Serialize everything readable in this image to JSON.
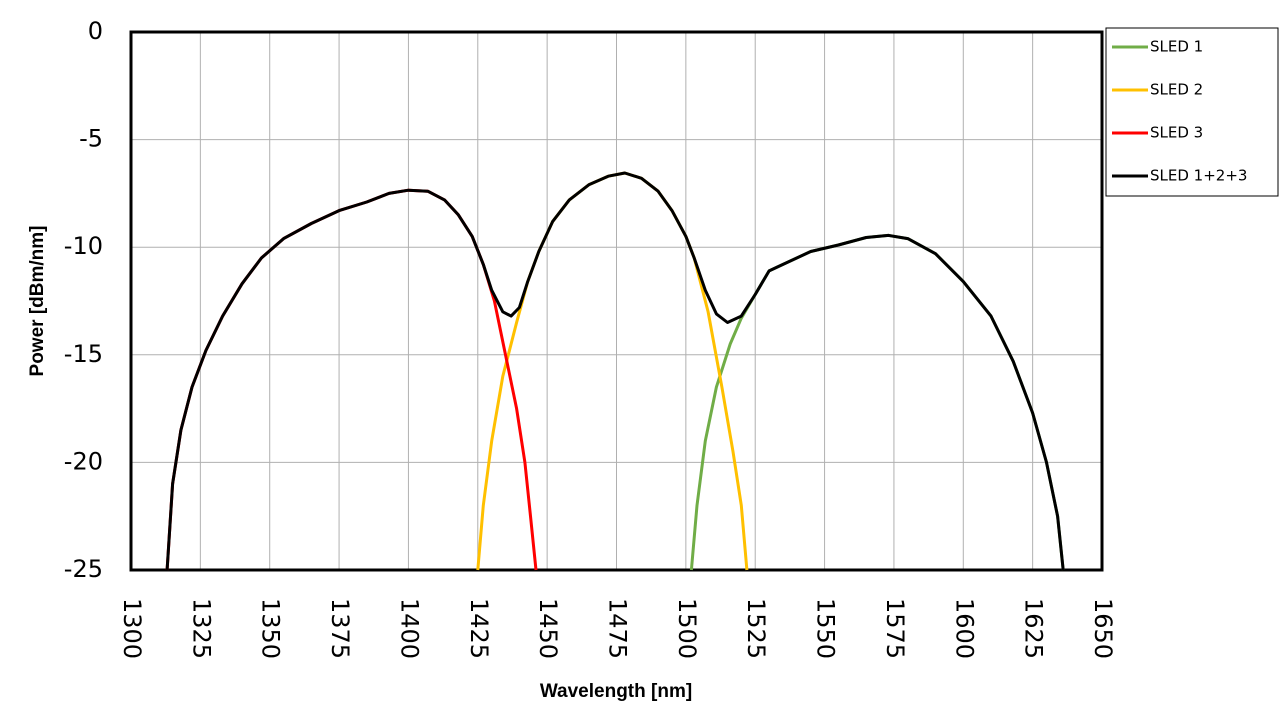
{
  "chart_data": {
    "type": "line",
    "x_label": "Wavelength [nm]",
    "y_label": "Power [dBm/nm]",
    "xlim": [
      1300,
      1650
    ],
    "xticks": [
      1300,
      1325,
      1350,
      1375,
      1400,
      1425,
      1450,
      1475,
      1500,
      1525,
      1550,
      1575,
      1600,
      1625,
      1650
    ],
    "ylim": [
      -25,
      0
    ],
    "yticks": [
      0,
      -5,
      -10,
      -15,
      -20,
      -25
    ],
    "grid": true,
    "legend": "right",
    "series": [
      {
        "name": "SLED 1",
        "color": "#70ad47",
        "x": [
          1502,
          1504,
          1507,
          1511,
          1516,
          1520,
          1525,
          1530,
          1535,
          1545,
          1555,
          1565,
          1573,
          1580,
          1590,
          1600,
          1610,
          1618,
          1625,
          1630,
          1634,
          1636
        ],
        "values": [
          -25,
          -22,
          -19,
          -16.5,
          -14.5,
          -13.3,
          -12.2,
          -11.1,
          -10.8,
          -10.2,
          -9.9,
          -9.55,
          -9.45,
          -9.6,
          -10.3,
          -11.6,
          -13.2,
          -15.3,
          -17.7,
          -20,
          -22.5,
          -25
        ]
      },
      {
        "name": "SLED 2",
        "color": "#ffc000",
        "x": [
          1425,
          1427,
          1430,
          1434,
          1439,
          1443,
          1447,
          1452,
          1458,
          1465,
          1472,
          1478,
          1484,
          1490,
          1495,
          1500,
          1503,
          1508,
          1513,
          1517,
          1520,
          1522
        ],
        "values": [
          -25,
          -22,
          -19,
          -16,
          -13.5,
          -11.6,
          -10.2,
          -8.8,
          -7.8,
          -7.1,
          -6.7,
          -6.55,
          -6.8,
          -7.4,
          -8.3,
          -9.5,
          -10.5,
          -13,
          -16.5,
          -19.5,
          -22,
          -25
        ]
      },
      {
        "name": "SLED 3",
        "color": "#ff0000",
        "x": [
          1313,
          1315,
          1318,
          1322,
          1327,
          1333,
          1340,
          1347,
          1355,
          1365,
          1375,
          1385,
          1393,
          1400,
          1407,
          1413,
          1418,
          1423,
          1427,
          1431,
          1435,
          1439,
          1442,
          1444,
          1446
        ],
        "values": [
          -25,
          -21,
          -18.5,
          -16.5,
          -14.8,
          -13.2,
          -11.7,
          -10.5,
          -9.6,
          -8.9,
          -8.3,
          -7.9,
          -7.5,
          -7.35,
          -7.4,
          -7.8,
          -8.5,
          -9.5,
          -10.8,
          -12.5,
          -15,
          -17.5,
          -20,
          -22.5,
          -25
        ]
      },
      {
        "name": "SLED 1+2+3",
        "color": "#000000",
        "x": [
          1313,
          1315,
          1318,
          1322,
          1327,
          1333,
          1340,
          1347,
          1355,
          1365,
          1375,
          1385,
          1393,
          1400,
          1407,
          1413,
          1418,
          1423,
          1427,
          1430,
          1434,
          1437,
          1440,
          1443,
          1447,
          1452,
          1458,
          1465,
          1472,
          1478,
          1484,
          1490,
          1495,
          1500,
          1503,
          1507,
          1511,
          1515,
          1520,
          1525,
          1530,
          1535,
          1545,
          1555,
          1565,
          1573,
          1580,
          1590,
          1600,
          1610,
          1618,
          1625,
          1630,
          1634,
          1636
        ],
        "values": [
          -25,
          -21,
          -18.5,
          -16.5,
          -14.8,
          -13.2,
          -11.7,
          -10.5,
          -9.6,
          -8.9,
          -8.3,
          -7.9,
          -7.5,
          -7.35,
          -7.4,
          -7.8,
          -8.5,
          -9.5,
          -10.8,
          -12,
          -13,
          -13.2,
          -12.8,
          -11.6,
          -10.2,
          -8.8,
          -7.8,
          -7.1,
          -6.7,
          -6.55,
          -6.8,
          -7.4,
          -8.3,
          -9.5,
          -10.5,
          -12,
          -13.1,
          -13.5,
          -13.2,
          -12.2,
          -11.1,
          -10.8,
          -10.2,
          -9.9,
          -9.55,
          -9.45,
          -9.6,
          -10.3,
          -11.6,
          -13.2,
          -15.3,
          -17.7,
          -20,
          -22.5,
          -25
        ]
      }
    ]
  }
}
